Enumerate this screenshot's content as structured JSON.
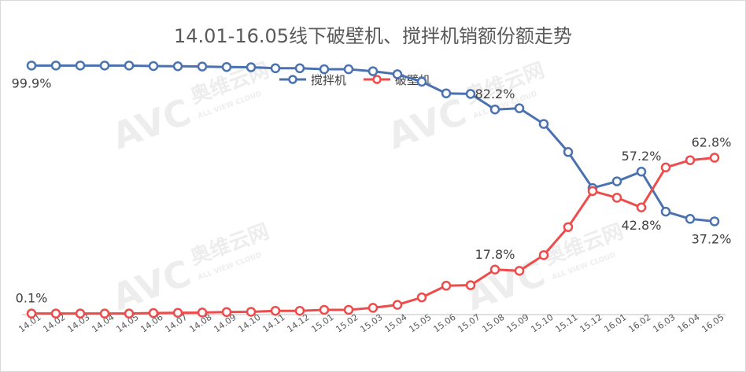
{
  "chart_data": {
    "type": "line",
    "title": "14.01-16.05线下破壁机、搅拌机销额份额走势",
    "xlabel": "",
    "ylabel": "",
    "ylim": [
      0,
      100
    ],
    "grid": false,
    "legend_position": "top-center",
    "categories": [
      "14.01",
      "14.02",
      "14.03",
      "14.04",
      "14.05",
      "14.06",
      "14.07",
      "14.08",
      "14.09",
      "14.10",
      "14.11",
      "14.12",
      "15.01",
      "15.02",
      "15.03",
      "15.04",
      "15.05",
      "15.06",
      "15.07",
      "15.08",
      "15.09",
      "15.10",
      "15.11",
      "15.12",
      "16.01",
      "16.02",
      "16.03",
      "16.04",
      "16.05"
    ],
    "series": [
      {
        "name": "搅拌机",
        "color": "#4a72b0",
        "values": [
          99.9,
          99.9,
          99.9,
          99.9,
          99.9,
          99.7,
          99.6,
          99.5,
          99.3,
          99.2,
          98.8,
          98.8,
          98.4,
          98.4,
          97.6,
          96.4,
          93.4,
          88.7,
          88.5,
          82.2,
          82.7,
          76.4,
          65.1,
          50.6,
          53.3,
          57.2,
          41.1,
          38.2,
          37.2
        ],
        "labels": [
          {
            "index": 0,
            "text": "99.9%",
            "pos": "below"
          },
          {
            "index": 19,
            "text": "82.2%",
            "pos": "above"
          },
          {
            "index": 25,
            "text": "57.2%",
            "pos": "above"
          },
          {
            "index": 28,
            "text": "37.2%",
            "pos": "below"
          }
        ]
      },
      {
        "name": "破壁机",
        "color": "#ee4b4b",
        "values": [
          0.1,
          0.1,
          0.1,
          0.1,
          0.1,
          0.3,
          0.4,
          0.5,
          0.7,
          0.8,
          1.2,
          1.2,
          1.6,
          1.6,
          2.4,
          3.6,
          6.6,
          11.3,
          11.5,
          17.8,
          17.3,
          23.6,
          34.9,
          49.4,
          46.7,
          42.8,
          58.9,
          61.8,
          62.8
        ],
        "labels": [
          {
            "index": 0,
            "text": "0.1%",
            "pos": "above"
          },
          {
            "index": 19,
            "text": "17.8%",
            "pos": "above"
          },
          {
            "index": 25,
            "text": "42.8%",
            "pos": "below"
          },
          {
            "index": 28,
            "text": "62.8%",
            "pos": "above"
          }
        ]
      }
    ]
  },
  "watermark": {
    "logo": "AVC",
    "cn": "奥维云网",
    "en": "ALL VIEW CLOUD"
  }
}
